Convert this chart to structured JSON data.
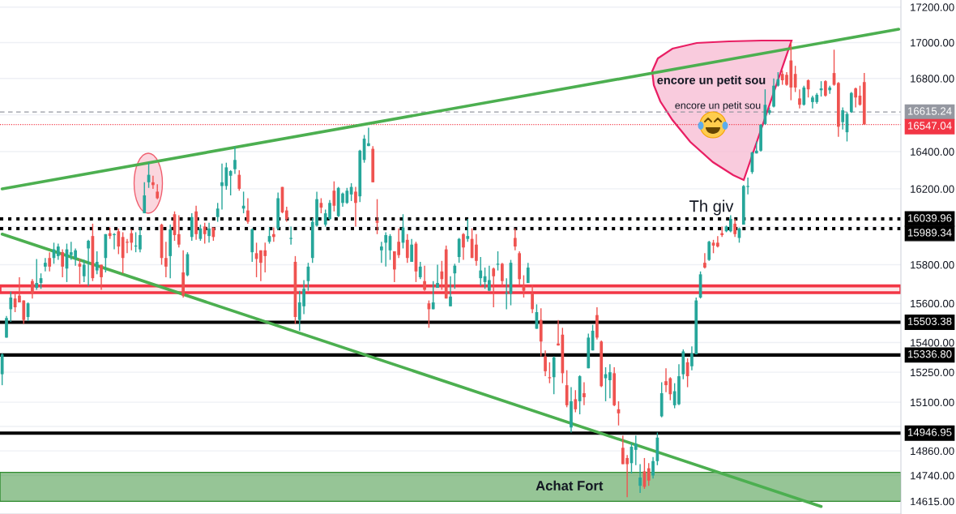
{
  "chart_data": {
    "type": "candlestick",
    "log": true,
    "grid": "y",
    "tick_labels": "y",
    "categories": [
      null,
      null,
      null,
      null,
      null,
      null,
      null,
      null,
      null,
      null,
      null,
      null,
      null,
      null,
      null,
      null,
      null,
      null,
      null,
      null,
      null,
      null,
      null,
      null,
      null,
      null,
      null,
      null,
      null,
      null,
      null,
      null,
      null,
      null,
      null,
      null,
      null,
      null,
      null,
      null,
      null,
      null,
      null,
      null,
      null,
      null,
      null,
      null,
      null,
      null,
      null,
      null,
      null,
      null,
      null,
      null,
      null,
      null,
      null,
      null,
      null,
      null,
      null,
      null,
      null,
      null,
      null,
      null,
      null,
      null,
      null,
      null,
      null,
      null,
      null,
      null,
      null,
      null,
      null,
      null,
      null,
      null,
      null,
      null,
      null,
      null,
      null,
      null,
      null,
      null,
      null,
      null,
      null,
      null,
      null,
      null,
      null,
      null,
      null,
      null,
      null,
      null,
      null,
      null,
      null,
      null,
      null,
      null,
      null,
      null,
      null,
      null,
      null,
      null,
      null,
      null,
      null,
      null,
      null,
      null,
      null,
      null,
      null,
      null,
      null,
      null,
      null,
      null,
      null,
      null,
      null,
      null,
      null,
      null,
      null,
      null,
      null,
      null,
      null,
      null,
      null,
      null,
      null,
      null,
      null,
      null,
      null,
      null,
      null,
      null,
      null,
      null,
      null,
      null,
      null,
      null,
      null,
      null,
      null,
      null,
      null,
      null,
      null,
      null,
      null,
      null,
      null,
      null,
      null,
      null,
      null,
      null,
      null,
      null,
      null,
      null,
      null,
      null,
      null,
      null,
      null,
      null,
      null,
      null,
      null,
      null,
      null,
      null,
      null,
      null,
      null,
      null,
      null,
      null,
      null,
      null,
      null,
      null,
      null,
      null,
      null,
      null,
      null,
      null,
      null,
      null,
      null,
      null,
      null
    ],
    "ohlc": [
      [
        15240,
        15345,
        15185,
        15340
      ],
      [
        15425,
        15535,
        15425,
        15525
      ],
      [
        15570,
        15660,
        15505,
        15630
      ],
      [
        15625,
        15650,
        15555,
        15580
      ],
      [
        15640,
        15735,
        15605,
        15605
      ],
      [
        15615,
        15615,
        15495,
        15515
      ],
      [
        15530,
        15605,
        15510,
        15600
      ],
      [
        15715,
        15725,
        15625,
        15650
      ],
      [
        15680,
        15830,
        15670,
        15705
      ],
      [
        15705,
        15755,
        15675,
        15730
      ],
      [
        15790,
        15835,
        15765,
        15810
      ],
      [
        15835,
        15865,
        15765,
        15790
      ],
      [
        15835,
        15915,
        15805,
        15880
      ],
      [
        15845,
        15910,
        15825,
        15895
      ],
      [
        15865,
        15880,
        15735,
        15790
      ],
      [
        15780,
        15910,
        15710,
        15880
      ],
      [
        15850,
        15920,
        15825,
        15865
      ],
      [
        15835,
        15885,
        15795,
        15875
      ],
      [
        15805,
        15830,
        15700,
        15790
      ],
      [
        15740,
        15825,
        15710,
        15800
      ],
      [
        15885,
        15930,
        15690,
        15925
      ],
      [
        15950,
        16015,
        15715,
        15730
      ],
      [
        15770,
        15870,
        15750,
        15815
      ],
      [
        15800,
        15800,
        15670,
        15735
      ],
      [
        15835,
        15960,
        15760,
        15960
      ],
      [
        15965,
        15995,
        15935,
        15950
      ],
      [
        15955,
        15965,
        15880,
        15960
      ],
      [
        15975,
        15990,
        15855,
        15895
      ],
      [
        15945,
        15970,
        15755,
        15835
      ],
      [
        15920,
        15935,
        15860,
        15915
      ],
      [
        15965,
        15985,
        15875,
        15915
      ],
      [
        15895,
        15970,
        15865,
        15900
      ],
      [
        15880,
        15995,
        15865,
        15955
      ],
      [
        16070,
        16235,
        16070,
        16165
      ],
      [
        16235,
        16340,
        16205,
        16275
      ],
      [
        16235,
        16270,
        16200,
        16220
      ],
      [
        16185,
        16225,
        16145,
        16150
      ],
      [
        16010,
        16015,
        15800,
        15835
      ],
      [
        15835,
        15920,
        15735,
        15790
      ],
      [
        15845,
        16010,
        15730,
        15985
      ],
      [
        16065,
        16080,
        15925,
        15955
      ],
      [
        15960,
        16060,
        15890,
        15905
      ],
      [
        15760,
        15875,
        15630,
        15640
      ],
      [
        15745,
        15865,
        15740,
        15855
      ],
      [
        15945,
        16070,
        15925,
        16050
      ],
      [
        16080,
        16110,
        15930,
        15960
      ],
      [
        15935,
        16010,
        15925,
        15990
      ],
      [
        16000,
        16020,
        15910,
        15960
      ],
      [
        15950,
        16020,
        15915,
        15990
      ],
      [
        15995,
        15995,
        15925,
        15945
      ],
      [
        16050,
        16125,
        16025,
        16095
      ],
      [
        16215,
        16335,
        16090,
        16235
      ],
      [
        16215,
        16340,
        16195,
        16315
      ],
      [
        16270,
        16300,
        16165,
        16295
      ],
      [
        16305,
        16425,
        16280,
        16355
      ],
      [
        16275,
        16300,
        16190,
        16200
      ],
      [
        16095,
        16185,
        16070,
        16110
      ],
      [
        16085,
        16150,
        16015,
        16025
      ],
      [
        15865,
        15990,
        15815,
        15985
      ],
      [
        15860,
        15915,
        15735,
        15830
      ],
      [
        15875,
        15875,
        15715,
        15810
      ],
      [
        15875,
        15915,
        15760,
        15845
      ],
      [
        15920,
        15995,
        15910,
        15950
      ],
      [
        15960,
        15995,
        15920,
        15945
      ],
      [
        15990,
        16180,
        15980,
        16150
      ],
      [
        16210,
        16210,
        16070,
        16075
      ],
      [
        16085,
        16105,
        16025,
        16040
      ],
      [
        15935,
        16000,
        15905,
        15940
      ],
      [
        15815,
        15845,
        15495,
        15530
      ],
      [
        15515,
        15665,
        15460,
        15605
      ],
      [
        15585,
        15720,
        15545,
        15675
      ],
      [
        15715,
        15810,
        15665,
        15790
      ],
      [
        15835,
        16045,
        15810,
        16025
      ],
      [
        16005,
        16185,
        16000,
        16145
      ],
      [
        16125,
        16150,
        16070,
        16100
      ],
      [
        16010,
        16090,
        16000,
        16070
      ],
      [
        16040,
        16140,
        16035,
        16125
      ],
      [
        16190,
        16240,
        16080,
        16110
      ],
      [
        16055,
        16210,
        16050,
        16205
      ],
      [
        16125,
        16180,
        16105,
        16175
      ],
      [
        16125,
        16205,
        16120,
        16190
      ],
      [
        16170,
        16230,
        16135,
        16210
      ],
      [
        16185,
        16210,
        16000,
        16125
      ],
      [
        16160,
        16410,
        16130,
        16405
      ],
      [
        16355,
        16490,
        16340,
        16470
      ],
      [
        16430,
        16530,
        16430,
        16445
      ],
      [
        16415,
        16430,
        16235,
        16235
      ],
      [
        16030,
        16145,
        15960,
        16020
      ],
      [
        15875,
        15920,
        15810,
        15895
      ],
      [
        15915,
        15970,
        15790,
        15955
      ],
      [
        15875,
        15960,
        15825,
        15950
      ],
      [
        15870,
        15870,
        15710,
        15775
      ],
      [
        15920,
        15990,
        15835,
        15850
      ],
      [
        15915,
        16065,
        15885,
        15995
      ],
      [
        15930,
        15960,
        15810,
        15835
      ],
      [
        15815,
        15935,
        15815,
        15905
      ],
      [
        15910,
        15920,
        15710,
        15765
      ],
      [
        15735,
        15815,
        15725,
        15790
      ],
      [
        15715,
        15795,
        15665,
        15670
      ],
      [
        15600,
        15615,
        15475,
        15570
      ],
      [
        15570,
        15715,
        15570,
        15605
      ],
      [
        15680,
        15800,
        15680,
        15705
      ],
      [
        15765,
        15820,
        15670,
        15725
      ],
      [
        15880,
        15900,
        15625,
        15625
      ],
      [
        15585,
        15740,
        15585,
        15635
      ],
      [
        15755,
        15805,
        15675,
        15795
      ],
      [
        15840,
        15940,
        15810,
        15935
      ],
      [
        15960,
        15965,
        15825,
        15890
      ],
      [
        15935,
        16040,
        15920,
        15950
      ],
      [
        15935,
        15990,
        15835,
        15835
      ],
      [
        15905,
        15960,
        15795,
        15820
      ],
      [
        15730,
        15840,
        15690,
        15770
      ],
      [
        15710,
        15785,
        15675,
        15740
      ],
      [
        15665,
        15795,
        15665,
        15720
      ],
      [
        15780,
        15785,
        15580,
        15740
      ],
      [
        15800,
        15870,
        15770,
        15805
      ],
      [
        15805,
        15810,
        15690,
        15715
      ],
      [
        15650,
        15730,
        15570,
        15655
      ],
      [
        15650,
        15825,
        15590,
        15810
      ],
      [
        15940,
        15990,
        15875,
        15895
      ],
      [
        15860,
        15870,
        15695,
        15725
      ],
      [
        15690,
        15745,
        15630,
        15665
      ],
      [
        15705,
        15810,
        15705,
        15785
      ],
      [
        15650,
        15695,
        15550,
        15570
      ],
      [
        15470,
        15595,
        15470,
        15555
      ],
      [
        15515,
        15575,
        15330,
        15405
      ],
      [
        15330,
        15360,
        15230,
        15255
      ],
      [
        15225,
        15300,
        15195,
        15220
      ],
      [
        15225,
        15330,
        15140,
        15325
      ],
      [
        15395,
        15515,
        15385,
        15385
      ],
      [
        15440,
        15475,
        15195,
        15245
      ],
      [
        15185,
        15260,
        15075,
        15085
      ],
      [
        14975,
        15175,
        14950,
        15105
      ],
      [
        15115,
        15160,
        15050,
        15065
      ],
      [
        15105,
        15235,
        15040,
        15230
      ],
      [
        15145,
        15200,
        15085,
        15125
      ],
      [
        15270,
        15445,
        15270,
        15425
      ],
      [
        15360,
        15490,
        15360,
        15460
      ],
      [
        15540,
        15580,
        15415,
        15425
      ],
      [
        15405,
        15410,
        15175,
        15180
      ],
      [
        15220,
        15275,
        15105,
        15240
      ],
      [
        15210,
        15290,
        15120,
        15250
      ],
      [
        15245,
        15275,
        15080,
        15085
      ],
      [
        15065,
        15105,
        14985,
        15045
      ],
      [
        14875,
        14935,
        14795,
        14795
      ],
      [
        14825,
        14840,
        14635,
        14795
      ],
      [
        14800,
        14900,
        14750,
        14880
      ],
      [
        14865,
        14935,
        14790,
        14895
      ],
      [
        14690,
        14795,
        14655,
        14730
      ],
      [
        14760,
        14825,
        14675,
        14685
      ],
      [
        14775,
        14800,
        14690,
        14715
      ],
      [
        14740,
        14830,
        14725,
        14810
      ],
      [
        14810,
        14950,
        14790,
        14925
      ],
      [
        15030,
        15200,
        15025,
        15145
      ],
      [
        15205,
        15270,
        15150,
        15185
      ],
      [
        15220,
        15225,
        15110,
        15140
      ],
      [
        15085,
        15195,
        15070,
        15155
      ],
      [
        15090,
        15290,
        15085,
        15230
      ],
      [
        15240,
        15365,
        15215,
        15355
      ],
      [
        15300,
        15320,
        15175,
        15230
      ],
      [
        15280,
        15380,
        15260,
        15345
      ],
      [
        15340,
        15630,
        15340,
        15615
      ],
      [
        15630,
        15765,
        15625,
        15750
      ],
      [
        15810,
        15860,
        15780,
        15785
      ],
      [
        15825,
        15925,
        15820,
        15920
      ],
      [
        15915,
        15930,
        15860,
        15900
      ],
      [
        15915,
        15950,
        15890,
        15895
      ],
      [
        15965,
        16000,
        15945,
        15955
      ],
      [
        15975,
        16005,
        15970,
        16000
      ],
      [
        15975,
        16060,
        15970,
        16040
      ],
      [
        16015,
        16040,
        15945,
        15960
      ],
      [
        15940,
        15995,
        15915,
        15990
      ],
      [
        16010,
        16220,
        16010,
        16215
      ],
      [
        16210,
        16260,
        16170,
        16215
      ],
      [
        16290,
        16400,
        16280,
        16395
      ],
      [
        16390,
        16455,
        16390,
        16405
      ],
      [
        16405,
        16550,
        16400,
        16545
      ],
      [
        16550,
        16740,
        16545,
        16655
      ],
      [
        16610,
        16640,
        16600,
        16625
      ],
      [
        16645,
        16800,
        16640,
        16760
      ],
      [
        16760,
        16835,
        16755,
        16795
      ],
      [
        16825,
        16845,
        16765,
        16790
      ],
      [
        16820,
        16835,
        16760,
        16765
      ],
      [
        16900,
        17005,
        16680,
        16750
      ],
      [
        16825,
        16870,
        16725,
        16750
      ],
      [
        16690,
        16740,
        16635,
        16655
      ],
      [
        16655,
        16760,
        16650,
        16750
      ],
      [
        16790,
        16795,
        16695,
        16740
      ],
      [
        16670,
        16705,
        16635,
        16695
      ],
      [
        16670,
        16720,
        16660,
        16710
      ],
      [
        16735,
        16785,
        16700,
        16745
      ],
      [
        16785,
        16790,
        16700,
        16705
      ],
      [
        16735,
        16760,
        16715,
        16750
      ],
      [
        16830,
        16960,
        16760,
        16765
      ],
      [
        16775,
        16780,
        16480,
        16535
      ],
      [
        16560,
        16640,
        16520,
        16625
      ],
      [
        16505,
        16615,
        16455,
        16605
      ],
      [
        16615,
        16725,
        16610,
        16720
      ],
      [
        16745,
        16750,
        16640,
        16695
      ],
      [
        16705,
        16760,
        16650,
        16655
      ],
      [
        16780,
        16830,
        16547.04,
        16547.04
      ],
      null,
      null,
      null,
      null,
      null,
      null,
      null,
      null
    ],
    "colors": [
      "#26a69a",
      "#26a69a",
      "#26a69a",
      "#ef5350",
      "#ef5350",
      "#ef5350",
      "#26a69a",
      "#ef5350",
      "#26a69a",
      "#26a69a",
      "#26a69a",
      "#ef5350",
      "#26a69a",
      "#26a69a",
      "#ef5350",
      "#26a69a",
      "#26a69a",
      "#26a69a",
      "#ef5350",
      "#26a69a",
      "#26a69a",
      "#ef5350",
      "#26a69a",
      "#ef5350",
      "#26a69a",
      "#ef5350",
      "#26a69a",
      "#ef5350",
      "#ef5350",
      "#ef5350",
      "#ef5350",
      "#26a69a",
      "#26a69a",
      "#26a69a",
      "#26a69a",
      "#ef5350",
      "#ef5350",
      "#ef5350",
      "#ef5350",
      "#26a69a",
      "#ef5350",
      "#ef5350",
      "#ef5350",
      "#26a69a",
      "#26a69a",
      "#ef5350",
      "#26a69a",
      "#ef5350",
      "#26a69a",
      "#ef5350",
      "#26a69a",
      "#26a69a",
      "#26a69a",
      "#26a69a",
      "#26a69a",
      "#ef5350",
      "#26a69a",
      "#ef5350",
      "#26a69a",
      "#ef5350",
      "#ef5350",
      "#ef5350",
      "#26a69a",
      "#ef5350",
      "#26a69a",
      "#ef5350",
      "#ef5350",
      "#26a69a",
      "#ef5350",
      "#26a69a",
      "#26a69a",
      "#26a69a",
      "#26a69a",
      "#26a69a",
      "#ef5350",
      "#26a69a",
      "#26a69a",
      "#ef5350",
      "#26a69a",
      "#26a69a",
      "#26a69a",
      "#26a69a",
      "#ef5350",
      "#26a69a",
      "#26a69a",
      "#26a69a",
      "#ef5350",
      "#ef5350",
      "#26a69a",
      "#26a69a",
      "#26a69a",
      "#ef5350",
      "#ef5350",
      "#26a69a",
      "#ef5350",
      "#26a69a",
      "#ef5350",
      "#26a69a",
      "#ef5350",
      "#ef5350",
      "#26a69a",
      "#26a69a",
      "#ef5350",
      "#ef5350",
      "#26a69a",
      "#26a69a",
      "#26a69a",
      "#ef5350",
      "#26a69a",
      "#ef5350",
      "#ef5350",
      "#26a69a",
      "#26a69a",
      "#26a69a",
      "#ef5350",
      "#26a69a",
      "#ef5350",
      "#26a69a",
      "#26a69a",
      "#ef5350",
      "#ef5350",
      "#ef5350",
      "#26a69a",
      "#ef5350",
      "#26a69a",
      "#ef5350",
      "#ef5350",
      "#ef5350",
      "#26a69a",
      "#ef5350",
      "#ef5350",
      "#ef5350",
      "#26a69a",
      "#ef5350",
      "#26a69a",
      "#ef5350",
      "#26a69a",
      "#26a69a",
      "#ef5350",
      "#ef5350",
      "#26a69a",
      "#26a69a",
      "#ef5350",
      "#ef5350",
      "#ef5350",
      "#ef5350",
      "#26a69a",
      "#26a69a",
      "#26a69a",
      "#ef5350",
      "#ef5350",
      "#26a69a",
      "#26a69a",
      "#26a69a",
      "#ef5350",
      "#ef5350",
      "#26a69a",
      "#26a69a",
      "#26a69a",
      "#ef5350",
      "#26a69a",
      "#26a69a",
      "#26a69a",
      "#ef5350",
      "#26a69a",
      "#ef5350",
      "#ef5350",
      "#ef5350",
      "#26a69a",
      "#26a69a",
      "#ef5350",
      "#26a69a",
      "#26a69a",
      "#26a69a",
      "#26a69a",
      "#26a69a",
      "#26a69a",
      "#26a69a",
      "#26a69a",
      "#26a69a",
      "#26a69a",
      "#ef5350",
      "#ef5350",
      "#ef5350",
      "#ef5350",
      "#ef5350",
      "#26a69a",
      "#ef5350",
      "#26a69a",
      "#26a69a",
      "#26a69a",
      "#ef5350",
      "#26a69a",
      "#ef5350",
      "#ef5350",
      "#26a69a",
      "#26a69a",
      "#26a69a",
      "#ef5350",
      "#ef5350",
      "#ef5350",
      null,
      null,
      null,
      null,
      null,
      null,
      null,
      null
    ],
    "series": [
      {
        "type": "line",
        "color": "#4caf50",
        "values": [
          16200,
          null,
          null,
          null,
          null,
          null,
          null,
          null,
          null,
          null,
          null,
          null,
          null,
          null,
          null,
          null,
          null,
          null,
          null,
          null,
          null,
          null,
          null,
          null,
          null,
          null,
          null,
          null,
          null,
          null,
          null,
          null,
          null,
          null,
          null,
          null,
          null,
          null,
          null,
          null,
          null,
          null,
          null,
          null,
          null,
          null,
          null,
          null,
          null,
          null,
          null,
          null,
          null,
          null,
          null,
          null,
          null,
          null,
          null,
          null,
          null,
          null,
          null,
          null,
          null,
          null,
          null,
          null,
          null,
          null,
          null,
          null,
          null,
          null,
          null,
          null,
          null,
          null,
          null,
          null,
          null,
          null,
          null,
          null,
          null,
          null,
          null,
          null,
          null,
          null,
          null,
          null,
          null,
          null,
          null,
          null,
          null,
          null,
          null,
          null,
          null,
          null,
          null,
          null,
          null,
          null,
          null,
          null,
          null,
          null,
          null,
          null,
          null,
          null,
          null,
          null,
          null,
          null,
          null,
          null,
          null,
          null,
          null,
          null,
          null,
          null,
          null,
          null,
          null,
          null,
          null,
          null,
          null,
          null,
          null,
          null,
          null,
          null,
          null,
          null,
          null,
          null,
          null,
          null,
          null,
          null,
          null,
          null,
          null,
          null,
          null,
          null,
          null,
          null,
          null,
          null,
          null,
          null,
          null,
          null,
          null,
          null,
          null,
          null,
          null,
          null,
          null,
          null,
          null,
          null,
          null,
          null,
          null,
          null,
          null,
          null,
          null,
          null,
          null,
          null,
          null,
          null,
          null,
          null,
          null,
          null,
          null,
          null,
          null,
          null,
          null,
          null,
          null,
          null,
          null,
          null,
          null,
          null,
          null,
          null,
          null,
          null,
          null,
          null,
          null,
          null,
          null,
          null,
          17075
        ]
      },
      {
        "type": "line",
        "color": "#4caf50",
        "values": [
          15960,
          null,
          null,
          null,
          null,
          null,
          null,
          null,
          null,
          null,
          null,
          null,
          null,
          null,
          null,
          null,
          null,
          null,
          null,
          null,
          null,
          null,
          null,
          null,
          null,
          null,
          null,
          null,
          null,
          null,
          null,
          null,
          null,
          null,
          null,
          null,
          null,
          null,
          null,
          null,
          null,
          null,
          null,
          null,
          null,
          null,
          null,
          null,
          null,
          null,
          null,
          null,
          null,
          null,
          null,
          null,
          null,
          null,
          null,
          null,
          null,
          null,
          null,
          null,
          null,
          null,
          null,
          null,
          null,
          null,
          null,
          null,
          null,
          null,
          null,
          null,
          null,
          null,
          null,
          null,
          null,
          null,
          null,
          null,
          null,
          null,
          null,
          null,
          null,
          null,
          null,
          null,
          null,
          null,
          null,
          null,
          null,
          null,
          null,
          null,
          null,
          null,
          null,
          null,
          null,
          null,
          null,
          null,
          null,
          null,
          null,
          null,
          null,
          null,
          null,
          null,
          null,
          null,
          null,
          null,
          null,
          null,
          null,
          null,
          null,
          null,
          null,
          null,
          null,
          null,
          null,
          null,
          null,
          null,
          null,
          null,
          null,
          null,
          null,
          null,
          null,
          null,
          null,
          null,
          null,
          null,
          null,
          null,
          null,
          null,
          null,
          null,
          null,
          null,
          null,
          null,
          null,
          null,
          null,
          null,
          null,
          null,
          null,
          null,
          null,
          null,
          null,
          null,
          null,
          null,
          null,
          null,
          null,
          null,
          null,
          null,
          null,
          null,
          null,
          null,
          null,
          null,
          null,
          null,
          null,
          null,
          null,
          null,
          null,
          null,
          14590,
          null,
          null,
          null,
          null,
          null,
          null,
          null,
          null,
          null,
          null,
          null,
          null,
          null,
          null,
          null,
          null,
          null,
          null
        ]
      }
    ],
    "ylim": [
      14554,
      17240
    ],
    "yticks": [
      {
        "value": 17200,
        "label": "17200.00"
      },
      {
        "value": 17000,
        "label": "17000.00"
      },
      {
        "value": 16800,
        "label": "16800.00"
      },
      {
        "value": 16600,
        "label": null
      },
      {
        "value": 16400,
        "label": "16400.00"
      },
      {
        "value": 16200,
        "label": "16200.00"
      },
      {
        "value": 16000,
        "label": null
      },
      {
        "value": 15800,
        "label": "15800.00"
      },
      {
        "value": 15600,
        "label": "15600.00"
      },
      {
        "value": 15400,
        "label": "15400.00"
      },
      {
        "value": 15250,
        "label": "15250.00"
      },
      {
        "value": 15100,
        "label": "15100.00"
      },
      {
        "value": 14980,
        "label": null
      },
      {
        "value": 14860,
        "label": "14860.00"
      },
      {
        "value": 14740,
        "label": "14740.00"
      },
      {
        "value": 14615,
        "label": "14615.00"
      }
    ],
    "ref_lines": [
      {
        "axis": "y",
        "value": 16615.24,
        "label": "16615.24",
        "color": "#9598a1",
        "line_style": "dashed"
      },
      {
        "axis": "y",
        "value": 16547.04,
        "label": "16547.04",
        "color": "#f23645",
        "line_style": "dotted"
      },
      {
        "axis": "y",
        "value": 16039.96,
        "label": "16039.96",
        "color": "#000000",
        "line_style": "dotted"
      },
      {
        "axis": "y",
        "value": 15989.34,
        "label": "15989.34",
        "color": "#000000",
        "line_style": "dotted"
      },
      {
        "axis": "y",
        "value": 15503.38,
        "label": "15503.38",
        "color": "#000000",
        "line_style": "solid"
      },
      {
        "axis": "y",
        "value": 15336.8,
        "label": "15336.80",
        "color": "#000000",
        "line_style": "solid"
      },
      {
        "axis": "y",
        "value": 14946.95,
        "label": "14946.95",
        "color": "#000000",
        "line_style": "solid"
      }
    ],
    "bands": [
      {
        "axis": "y",
        "from": 15655,
        "to": 15690,
        "color": "#f23645"
      },
      {
        "axis": "y",
        "from": 14615,
        "to": 14755,
        "label": "Achat Fort",
        "color": "#2e8b2e"
      }
    ],
    "annotations": [
      "encore un petit sou",
      "encore un petit sou",
      "Th giv"
    ]
  }
}
